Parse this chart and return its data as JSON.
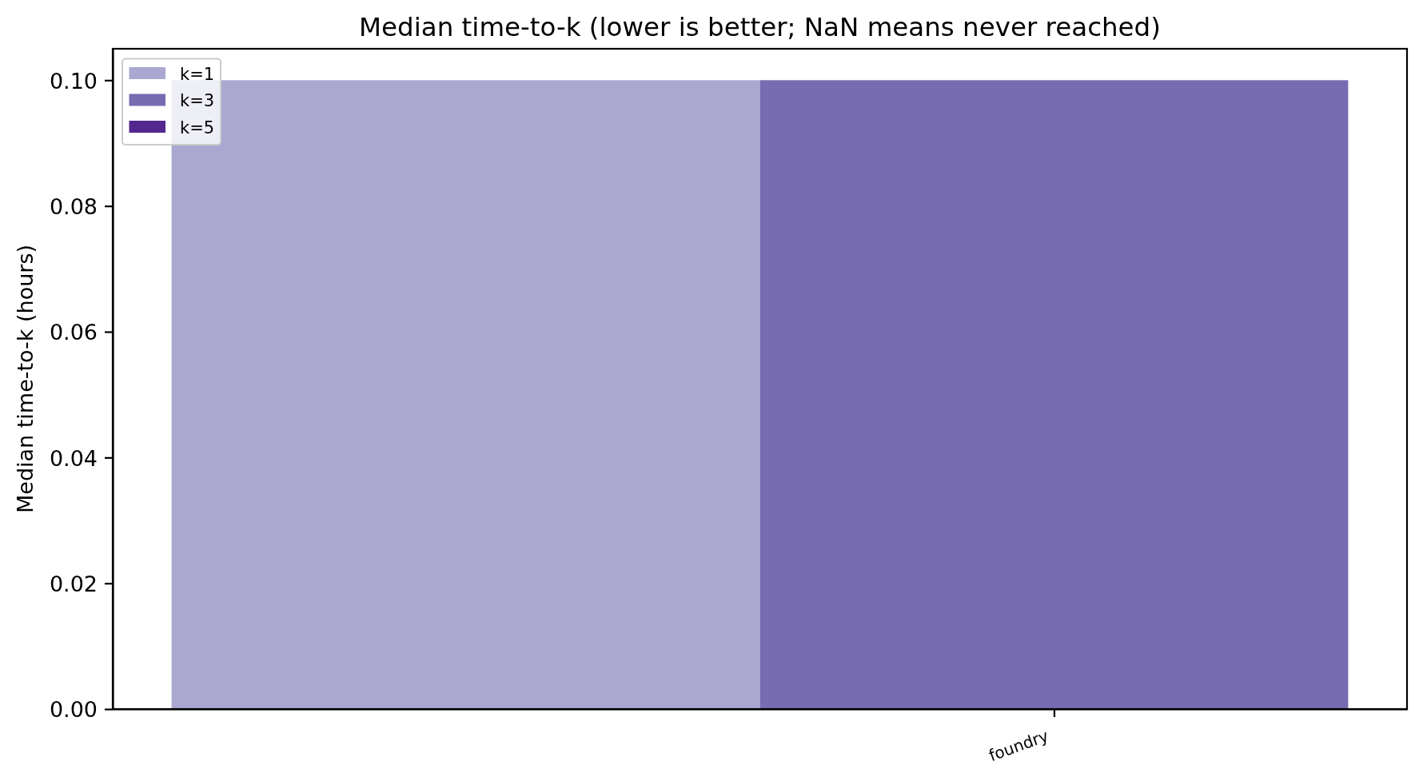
{
  "chart_data": {
    "type": "bar",
    "title": "Median time-to-k (lower is better; NaN means never reached)",
    "ylabel": "Median time-to-k (hours)",
    "categories": [
      "foundry"
    ],
    "series": [
      {
        "name": "k=1",
        "color": "#aaa8d0",
        "values": [
          0.1
        ]
      },
      {
        "name": "k=3",
        "color": "#776cb1",
        "values": [
          0.1
        ]
      },
      {
        "name": "k=5",
        "color": "#54278f",
        "values": [
          null
        ]
      }
    ],
    "ylim": [
      0,
      0.105
    ],
    "yticks": [
      {
        "value": 0,
        "label": "0.00"
      },
      {
        "value": 0.02,
        "label": "0.02"
      },
      {
        "value": 0.04,
        "label": "0.04"
      },
      {
        "value": 0.06,
        "label": "0.06"
      },
      {
        "value": 0.08,
        "label": "0.08"
      },
      {
        "value": 0.1,
        "label": "0.10"
      }
    ],
    "legend": "top left"
  }
}
